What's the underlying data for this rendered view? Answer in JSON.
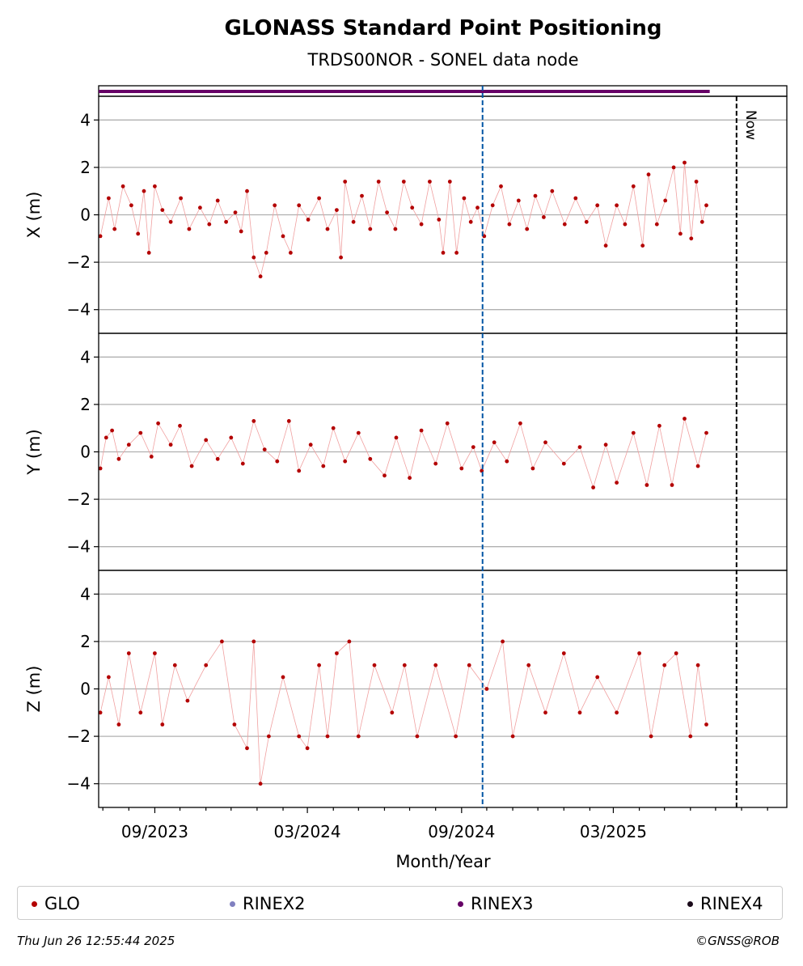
{
  "chart_data": {
    "type": "scatter",
    "title": "GLONASS Standard Point Positioning",
    "subtitle": "TRDS00NOR - SONEL data node",
    "xlabel": "Month/Year",
    "x_range": [
      "2023-06-26",
      "2025-09-24"
    ],
    "x_ticks": [
      "09/2023",
      "03/2024",
      "09/2024",
      "03/2025"
    ],
    "now_label": "Now",
    "now_date": "2025-07-26",
    "reference_line_date": "2024-09-26",
    "grid": true,
    "legend_placement": "bottom",
    "panels": [
      {
        "ylabel": "X (m)",
        "ylim": [
          -5,
          5
        ],
        "yticks": [
          -4,
          -2,
          0,
          2,
          4
        ],
        "points": [
          [
            "2023-06-28",
            -0.9
          ],
          [
            "2023-07-08",
            0.7
          ],
          [
            "2023-07-15",
            -0.6
          ],
          [
            "2023-07-25",
            1.2
          ],
          [
            "2023-08-04",
            0.4
          ],
          [
            "2023-08-12",
            -0.8
          ],
          [
            "2023-08-19",
            1.0
          ],
          [
            "2023-08-25",
            -1.6
          ],
          [
            "2023-09-01",
            1.2
          ],
          [
            "2023-09-10",
            0.2
          ],
          [
            "2023-09-20",
            -0.3
          ],
          [
            "2023-10-02",
            0.7
          ],
          [
            "2023-10-12",
            -0.6
          ],
          [
            "2023-10-25",
            0.3
          ],
          [
            "2023-11-05",
            -0.4
          ],
          [
            "2023-11-15",
            0.6
          ],
          [
            "2023-11-25",
            -0.3
          ],
          [
            "2023-12-06",
            0.1
          ],
          [
            "2023-12-13",
            -0.7
          ],
          [
            "2023-12-20",
            1.0
          ],
          [
            "2023-12-28",
            -1.8
          ],
          [
            "2024-01-05",
            -2.6
          ],
          [
            "2024-01-12",
            -1.6
          ],
          [
            "2024-01-22",
            0.4
          ],
          [
            "2024-02-01",
            -0.9
          ],
          [
            "2024-02-10",
            -1.6
          ],
          [
            "2024-02-20",
            0.4
          ],
          [
            "2024-03-02",
            -0.2
          ],
          [
            "2024-03-15",
            0.7
          ],
          [
            "2024-03-25",
            -0.6
          ],
          [
            "2024-04-05",
            0.2
          ],
          [
            "2024-04-10",
            -1.8
          ],
          [
            "2024-04-15",
            1.4
          ],
          [
            "2024-04-25",
            -0.3
          ],
          [
            "2024-05-05",
            0.8
          ],
          [
            "2024-05-15",
            -0.6
          ],
          [
            "2024-05-25",
            1.4
          ],
          [
            "2024-06-04",
            0.1
          ],
          [
            "2024-06-14",
            -0.6
          ],
          [
            "2024-06-24",
            1.4
          ],
          [
            "2024-07-04",
            0.3
          ],
          [
            "2024-07-15",
            -0.4
          ],
          [
            "2024-07-25",
            1.4
          ],
          [
            "2024-08-05",
            -0.2
          ],
          [
            "2024-08-10",
            -1.6
          ],
          [
            "2024-08-18",
            1.4
          ],
          [
            "2024-08-26",
            -1.6
          ],
          [
            "2024-09-04",
            0.7
          ],
          [
            "2024-09-12",
            -0.3
          ],
          [
            "2024-09-20",
            0.3
          ],
          [
            "2024-09-28",
            -0.9
          ],
          [
            "2024-10-08",
            0.4
          ],
          [
            "2024-10-18",
            1.2
          ],
          [
            "2024-10-28",
            -0.4
          ],
          [
            "2024-11-08",
            0.6
          ],
          [
            "2024-11-18",
            -0.6
          ],
          [
            "2024-11-28",
            0.8
          ],
          [
            "2024-12-08",
            -0.1
          ],
          [
            "2024-12-18",
            1.0
          ],
          [
            "2025-01-02",
            -0.4
          ],
          [
            "2025-01-15",
            0.7
          ],
          [
            "2025-01-28",
            -0.3
          ],
          [
            "2025-02-10",
            0.4
          ],
          [
            "2025-02-20",
            -1.3
          ],
          [
            "2025-03-05",
            0.4
          ],
          [
            "2025-03-15",
            -0.4
          ],
          [
            "2025-03-25",
            1.2
          ],
          [
            "2025-04-05",
            -1.3
          ],
          [
            "2025-04-12",
            1.7
          ],
          [
            "2025-04-22",
            -0.4
          ],
          [
            "2025-05-02",
            0.6
          ],
          [
            "2025-05-12",
            2.0
          ],
          [
            "2025-05-20",
            -0.8
          ],
          [
            "2025-05-25",
            2.2
          ],
          [
            "2025-06-02",
            -1.0
          ],
          [
            "2025-06-08",
            1.4
          ],
          [
            "2025-06-15",
            -0.3
          ],
          [
            "2025-06-20",
            0.4
          ]
        ]
      },
      {
        "ylabel": "Y (m)",
        "ylim": [
          -5,
          5
        ],
        "yticks": [
          -4,
          -2,
          0,
          2,
          4
        ],
        "points": [
          [
            "2023-06-28",
            -0.7
          ],
          [
            "2023-07-05",
            0.6
          ],
          [
            "2023-07-12",
            0.9
          ],
          [
            "2023-07-20",
            -0.3
          ],
          [
            "2023-08-01",
            0.3
          ],
          [
            "2023-08-15",
            0.8
          ],
          [
            "2023-08-28",
            -0.2
          ],
          [
            "2023-09-05",
            1.2
          ],
          [
            "2023-09-20",
            0.3
          ],
          [
            "2023-10-01",
            1.1
          ],
          [
            "2023-10-15",
            -0.6
          ],
          [
            "2023-11-01",
            0.5
          ],
          [
            "2023-11-15",
            -0.3
          ],
          [
            "2023-12-01",
            0.6
          ],
          [
            "2023-12-15",
            -0.5
          ],
          [
            "2023-12-28",
            1.3
          ],
          [
            "2024-01-10",
            0.1
          ],
          [
            "2024-01-25",
            -0.4
          ],
          [
            "2024-02-08",
            1.3
          ],
          [
            "2024-02-20",
            -0.8
          ],
          [
            "2024-03-05",
            0.3
          ],
          [
            "2024-03-20",
            -0.6
          ],
          [
            "2024-04-01",
            1.0
          ],
          [
            "2024-04-15",
            -0.4
          ],
          [
            "2024-05-01",
            0.8
          ],
          [
            "2024-05-15",
            -0.3
          ],
          [
            "2024-06-01",
            -1.0
          ],
          [
            "2024-06-15",
            0.6
          ],
          [
            "2024-07-01",
            -1.1
          ],
          [
            "2024-07-15",
            0.9
          ],
          [
            "2024-08-01",
            -0.5
          ],
          [
            "2024-08-15",
            1.2
          ],
          [
            "2024-09-01",
            -0.7
          ],
          [
            "2024-09-15",
            0.2
          ],
          [
            "2024-09-25",
            -0.8
          ],
          [
            "2024-10-10",
            0.4
          ],
          [
            "2024-10-25",
            -0.4
          ],
          [
            "2024-11-10",
            1.2
          ],
          [
            "2024-11-25",
            -0.7
          ],
          [
            "2024-12-10",
            0.4
          ],
          [
            "2025-01-01",
            -0.5
          ],
          [
            "2025-01-20",
            0.2
          ],
          [
            "2025-02-05",
            -1.5
          ],
          [
            "2025-02-20",
            0.3
          ],
          [
            "2025-03-05",
            -1.3
          ],
          [
            "2025-03-25",
            0.8
          ],
          [
            "2025-04-10",
            -1.4
          ],
          [
            "2025-04-25",
            1.1
          ],
          [
            "2025-05-10",
            -1.4
          ],
          [
            "2025-05-25",
            1.4
          ],
          [
            "2025-06-10",
            -0.6
          ],
          [
            "2025-06-20",
            0.8
          ]
        ]
      },
      {
        "ylabel": "Z (m)",
        "ylim": [
          -5,
          5
        ],
        "yticks": [
          -4,
          -2,
          0,
          2,
          4
        ],
        "points": [
          [
            "2023-06-28",
            -1.0
          ],
          [
            "2023-07-08",
            0.5
          ],
          [
            "2023-07-20",
            -1.5
          ],
          [
            "2023-08-01",
            1.5
          ],
          [
            "2023-08-15",
            -1.0
          ],
          [
            "2023-09-01",
            1.5
          ],
          [
            "2023-09-10",
            -1.5
          ],
          [
            "2023-09-25",
            1.0
          ],
          [
            "2023-10-10",
            -0.5
          ],
          [
            "2023-11-01",
            1.0
          ],
          [
            "2023-11-20",
            2.0
          ],
          [
            "2023-12-05",
            -1.5
          ],
          [
            "2023-12-20",
            -2.5
          ],
          [
            "2023-12-28",
            2.0
          ],
          [
            "2024-01-05",
            -4.0
          ],
          [
            "2024-01-15",
            -2.0
          ],
          [
            "2024-02-01",
            0.5
          ],
          [
            "2024-02-20",
            -2.0
          ],
          [
            "2024-03-01",
            -2.5
          ],
          [
            "2024-03-15",
            1.0
          ],
          [
            "2024-03-25",
            -2.0
          ],
          [
            "2024-04-05",
            1.5
          ],
          [
            "2024-04-20",
            2.0
          ],
          [
            "2024-05-01",
            -2.0
          ],
          [
            "2024-05-20",
            1.0
          ],
          [
            "2024-06-10",
            -1.0
          ],
          [
            "2024-06-25",
            1.0
          ],
          [
            "2024-07-10",
            -2.0
          ],
          [
            "2024-08-01",
            1.0
          ],
          [
            "2024-08-25",
            -2.0
          ],
          [
            "2024-09-10",
            1.0
          ],
          [
            "2024-10-01",
            0.0
          ],
          [
            "2024-10-20",
            2.0
          ],
          [
            "2024-11-01",
            -2.0
          ],
          [
            "2024-11-20",
            1.0
          ],
          [
            "2024-12-10",
            -1.0
          ],
          [
            "2025-01-01",
            1.5
          ],
          [
            "2025-01-20",
            -1.0
          ],
          [
            "2025-02-10",
            0.5
          ],
          [
            "2025-03-05",
            -1.0
          ],
          [
            "2025-04-01",
            1.5
          ],
          [
            "2025-04-15",
            -2.0
          ],
          [
            "2025-05-01",
            1.0
          ],
          [
            "2025-05-15",
            1.5
          ],
          [
            "2025-06-01",
            -2.0
          ],
          [
            "2025-06-10",
            1.0
          ],
          [
            "2025-06-20",
            -1.5
          ]
        ]
      }
    ],
    "series": [
      {
        "name": "GLO",
        "color": "#b30000"
      },
      {
        "name": "RINEX2",
        "color": "#8080c0"
      },
      {
        "name": "RINEX3",
        "color": "#660066"
      },
      {
        "name": "RINEX4",
        "color": "#1a0a1a"
      }
    ],
    "rinex_strip": {
      "series": "RINEX3",
      "from": "2023-06-26",
      "to": "2025-06-24"
    }
  },
  "colors": {
    "reference_line": "#0055a5",
    "grid": "#b0b0b0",
    "glo_line": "#f0a0a0"
  },
  "footer": {
    "left": "Thu Jun 26 12:55:44 2025",
    "right": "©GNSS@ROB"
  }
}
